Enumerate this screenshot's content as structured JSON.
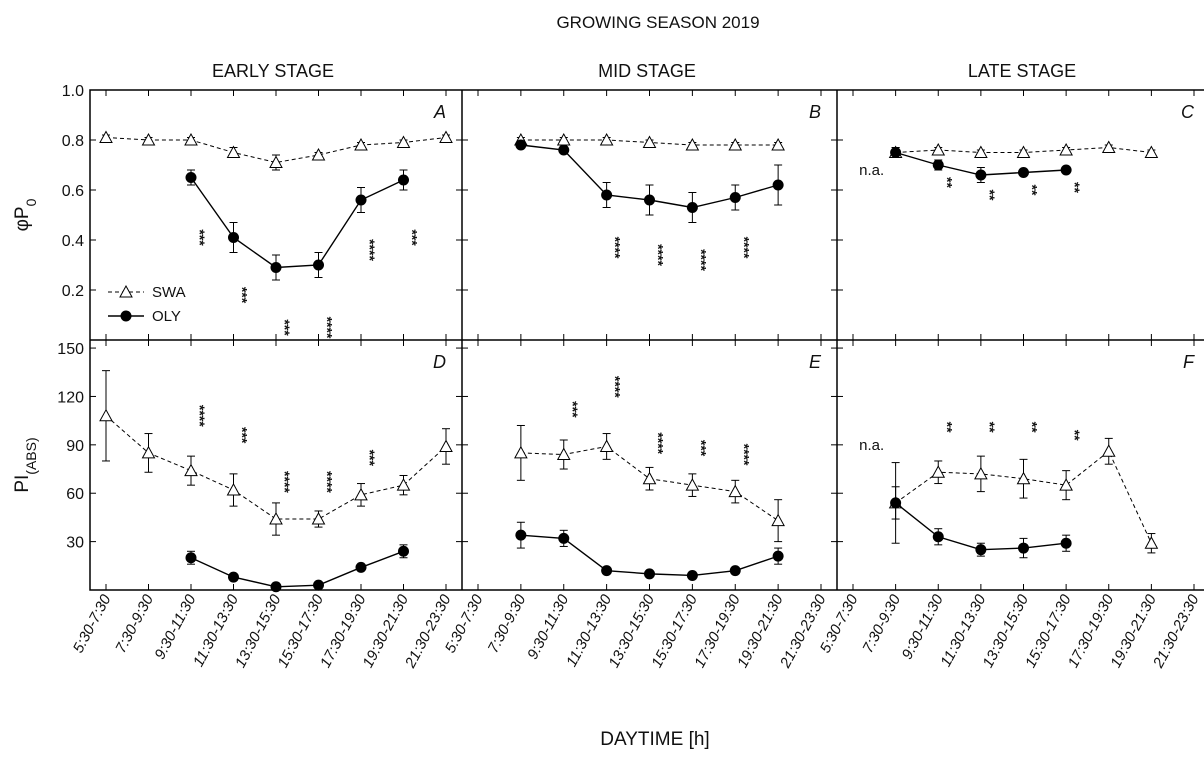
{
  "figure": {
    "suptitle": "GROWING SEASON 2019",
    "columns": [
      "EARLY STAGE",
      "MID STAGE",
      "LATE STAGE"
    ],
    "xlabel": "DAYTIME [h]",
    "na_label": "n.a."
  },
  "chart_data": {
    "type": "line",
    "xlabel": "DAYTIME [h]",
    "categories": [
      "5:30-7:30",
      "7:30-9:30",
      "9:30-11:30",
      "11:30-13:30",
      "13:30-15:30",
      "15:30-17:30",
      "17:30-19:30",
      "19:30-21:30",
      "21:30-23:30"
    ],
    "legend": [
      "SWA",
      "OLY"
    ],
    "rows": [
      {
        "ylabel_main": "φP",
        "ylabel_sub": "0",
        "ylim": [
          0,
          1.0
        ],
        "yticks": [
          0.2,
          0.4,
          0.6,
          0.8,
          1.0
        ],
        "yticklabels": [
          "0.2",
          "0.4",
          "0.6",
          "0.8",
          "1.0"
        ]
      },
      {
        "ylabel_main": "PI",
        "ylabel_sub": "(ABS)",
        "ylim": [
          0,
          155
        ],
        "yticks": [
          30,
          60,
          90,
          120,
          150
        ],
        "yticklabels": [
          "30",
          "60",
          "90",
          "120",
          "150"
        ]
      }
    ],
    "panels": [
      {
        "letter": "A",
        "row": 0,
        "col": 0,
        "series": [
          {
            "name": "SWA",
            "values": [
              0.81,
              0.8,
              0.8,
              0.75,
              0.71,
              0.74,
              0.78,
              0.79,
              0.81
            ],
            "err": [
              0.01,
              0.01,
              0.01,
              0.02,
              0.03,
              0.01,
              0.01,
              0.01,
              0.01
            ]
          },
          {
            "name": "OLY",
            "values": [
              null,
              null,
              0.65,
              0.41,
              0.29,
              0.3,
              0.56,
              0.64,
              null
            ],
            "err": [
              null,
              null,
              0.03,
              0.06,
              0.05,
              0.05,
              0.05,
              0.04,
              null
            ]
          }
        ],
        "annotations": [
          {
            "index": 2,
            "text": "***",
            "y": 0.41
          },
          {
            "index": 3,
            "text": "***",
            "y": 0.18
          },
          {
            "index": 4,
            "text": "***",
            "y": 0.05
          },
          {
            "index": 5,
            "text": "****",
            "y": 0.05
          },
          {
            "index": 6,
            "text": "****",
            "y": 0.36
          },
          {
            "index": 7,
            "text": "***",
            "y": 0.41
          }
        ]
      },
      {
        "letter": "B",
        "row": 0,
        "col": 1,
        "series": [
          {
            "name": "SWA",
            "values": [
              null,
              0.8,
              0.8,
              0.8,
              0.79,
              0.78,
              0.78,
              0.78,
              null
            ],
            "err": [
              null,
              0.01,
              0.01,
              0.01,
              0.01,
              0.01,
              0.01,
              0.01,
              null
            ]
          },
          {
            "name": "OLY",
            "values": [
              null,
              0.78,
              0.76,
              0.58,
              0.56,
              0.53,
              0.57,
              0.62,
              null
            ],
            "err": [
              null,
              0.01,
              0.01,
              0.05,
              0.06,
              0.06,
              0.05,
              0.08,
              null
            ]
          }
        ],
        "annotations": [
          {
            "index": 3,
            "text": "****",
            "y": 0.37
          },
          {
            "index": 4,
            "text": "****",
            "y": 0.34
          },
          {
            "index": 5,
            "text": "****",
            "y": 0.32
          },
          {
            "index": 6,
            "text": "****",
            "y": 0.37
          }
        ]
      },
      {
        "letter": "C",
        "row": 0,
        "col": 2,
        "series": [
          {
            "name": "SWA",
            "values": [
              null,
              0.75,
              0.76,
              0.75,
              0.75,
              0.76,
              0.77,
              0.75,
              null
            ],
            "err": [
              null,
              0.02,
              0.01,
              0.01,
              0.01,
              0.01,
              0.01,
              0.01,
              null
            ]
          },
          {
            "name": "OLY",
            "values": [
              null,
              0.75,
              0.7,
              0.66,
              0.67,
              0.68,
              null,
              null,
              null
            ],
            "err": [
              null,
              0.02,
              0.02,
              0.03,
              0.01,
              0.01,
              null,
              null,
              null
            ]
          }
        ],
        "annotations": [
          {
            "index": 1,
            "text": "n.a.",
            "y": 0.68,
            "kind": "na"
          },
          {
            "index": 2,
            "text": "**",
            "y": 0.63
          },
          {
            "index": 3,
            "text": "**",
            "y": 0.58
          },
          {
            "index": 4,
            "text": "**",
            "y": 0.6
          },
          {
            "index": 5,
            "text": "**",
            "y": 0.61
          }
        ]
      },
      {
        "letter": "D",
        "row": 1,
        "col": 0,
        "series": [
          {
            "name": "SWA",
            "values": [
              108,
              85,
              74,
              62,
              44,
              44,
              59,
              65,
              89
            ],
            "err": [
              28,
              12,
              9,
              10,
              10,
              5,
              7,
              6,
              11
            ]
          },
          {
            "name": "OLY",
            "values": [
              null,
              null,
              20,
              8,
              2,
              3,
              14,
              24,
              null
            ],
            "err": [
              null,
              null,
              4,
              2,
              2,
              2,
              2,
              4,
              null
            ]
          }
        ],
        "annotations": [
          {
            "index": 2,
            "text": "****",
            "y": 108
          },
          {
            "index": 3,
            "text": "***",
            "y": 96
          },
          {
            "index": 4,
            "text": "****",
            "y": 67
          },
          {
            "index": 5,
            "text": "****",
            "y": 67
          },
          {
            "index": 6,
            "text": "***",
            "y": 82
          }
        ]
      },
      {
        "letter": "E",
        "row": 1,
        "col": 1,
        "series": [
          {
            "name": "SWA",
            "values": [
              null,
              85,
              84,
              89,
              69,
              65,
              61,
              43,
              null
            ],
            "err": [
              null,
              17,
              9,
              8,
              7,
              7,
              7,
              13,
              null
            ]
          },
          {
            "name": "OLY",
            "values": [
              null,
              34,
              32,
              12,
              10,
              9,
              12,
              21,
              null
            ],
            "err": [
              null,
              8,
              5,
              2,
              1,
              2,
              2,
              5,
              null
            ]
          }
        ],
        "annotations": [
          {
            "index": 2,
            "text": "***",
            "y": 112
          },
          {
            "index": 3,
            "text": "****",
            "y": 126
          },
          {
            "index": 4,
            "text": "****",
            "y": 91
          },
          {
            "index": 5,
            "text": "***",
            "y": 88
          },
          {
            "index": 6,
            "text": "****",
            "y": 84
          }
        ]
      },
      {
        "letter": "F",
        "row": 1,
        "col": 2,
        "series": [
          {
            "name": "SWA",
            "values": [
              null,
              54,
              73,
              72,
              69,
              65,
              86,
              29,
              null
            ],
            "err": [
              null,
              25,
              7,
              11,
              12,
              9,
              8,
              6,
              null
            ]
          },
          {
            "name": "OLY",
            "values": [
              null,
              54,
              33,
              25,
              26,
              29,
              null,
              null,
              null
            ],
            "err": [
              null,
              10,
              5,
              4,
              6,
              5,
              null,
              null,
              null
            ]
          }
        ],
        "annotations": [
          {
            "index": 1,
            "text": "n.a.",
            "y": 90,
            "kind": "na"
          },
          {
            "index": 2,
            "text": "**",
            "y": 101
          },
          {
            "index": 3,
            "text": "**",
            "y": 101
          },
          {
            "index": 4,
            "text": "**",
            "y": 101
          },
          {
            "index": 5,
            "text": "**",
            "y": 96
          }
        ]
      }
    ]
  }
}
